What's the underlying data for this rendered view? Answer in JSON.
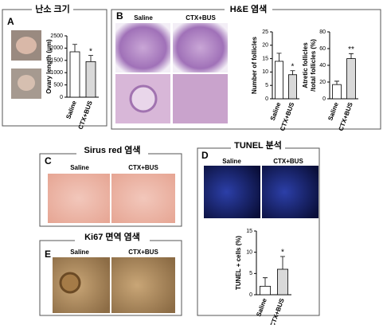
{
  "panels": {
    "A": {
      "letter": "A",
      "title": "난소 크기"
    },
    "B": {
      "letter": "B",
      "title": "H&E 염색",
      "image_labels": [
        "Saline",
        "CTX+BUS"
      ]
    },
    "C": {
      "letter": "C",
      "title": "Sirus red 염색",
      "image_labels": [
        "Saline",
        "CTX+BUS"
      ]
    },
    "D": {
      "letter": "D",
      "title": "TUNEL 분석",
      "image_labels": [
        "Saline",
        "CTX+BUS"
      ]
    },
    "E": {
      "letter": "E",
      "title": "Ki67 면역 염색",
      "image_labels": [
        "Saline",
        "CTX+BUS"
      ]
    }
  },
  "chart_data": [
    {
      "type": "bar",
      "ylabel": "Ovary length (μm)",
      "categories": [
        "Saline",
        "CTX+BUS"
      ],
      "values": [
        1850,
        1450
      ],
      "errors": [
        300,
        250
      ],
      "colors": [
        "#ffffff",
        "#d9d9d9"
      ],
      "ylim": [
        0,
        2500
      ],
      "yticks": [
        0,
        500,
        1000,
        1500,
        2000,
        2500
      ],
      "annotations": [
        {
          "x": "CTX+BUS",
          "text": "*"
        }
      ]
    },
    {
      "type": "bar",
      "ylabel": "Number of follicles",
      "categories": [
        "Saline",
        "CTX+BUS"
      ],
      "values": [
        14,
        9
      ],
      "errors": [
        3,
        1.5
      ],
      "colors": [
        "#ffffff",
        "#d9d9d9"
      ],
      "ylim": [
        0,
        25
      ],
      "yticks": [
        0,
        5,
        10,
        15,
        20,
        25
      ],
      "annotations": [
        {
          "x": "CTX+BUS",
          "text": "*"
        }
      ]
    },
    {
      "type": "bar",
      "ylabel": [
        "Atretic follicles",
        "/total follicles (%)"
      ],
      "categories": [
        "Saline",
        "CTX+BUS"
      ],
      "values": [
        17,
        48
      ],
      "errors": [
        4,
        6
      ],
      "colors": [
        "#ffffff",
        "#d9d9d9"
      ],
      "ylim": [
        0,
        80
      ],
      "yticks": [
        0,
        20,
        40,
        60,
        80
      ],
      "annotations": [
        {
          "x": "CTX+BUS",
          "text": "**"
        }
      ]
    },
    {
      "type": "bar",
      "ylabel": "TUNEL + cells (%)",
      "categories": [
        "Saline",
        "CTX+BUS"
      ],
      "values": [
        2,
        6
      ],
      "errors": [
        2,
        3
      ],
      "colors": [
        "#ffffff",
        "#d9d9d9"
      ],
      "ylim": [
        0,
        15
      ],
      "yticks": [
        0,
        5,
        10,
        15
      ],
      "annotations": [
        {
          "x": "CTX+BUS",
          "text": "*"
        }
      ]
    }
  ]
}
